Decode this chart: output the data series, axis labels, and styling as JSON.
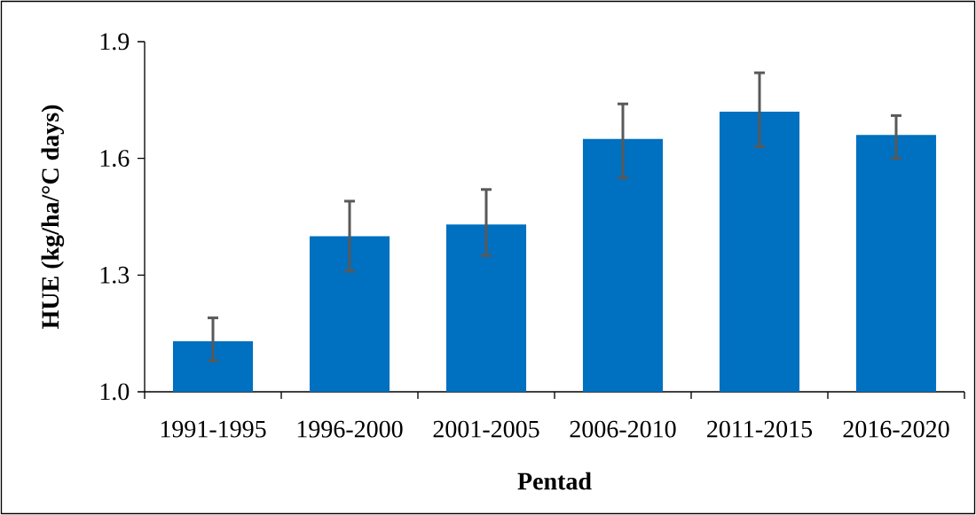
{
  "chart_data": {
    "type": "bar",
    "categories": [
      "1991-1995",
      "1996-2000",
      "2001-2005",
      "2006-2010",
      "2011-2015",
      "2016-2020"
    ],
    "values": [
      1.13,
      1.4,
      1.43,
      1.65,
      1.72,
      1.66
    ],
    "errors": [
      [
        1.08,
        1.19
      ],
      [
        1.31,
        1.49
      ],
      [
        1.35,
        1.52
      ],
      [
        1.55,
        1.74
      ],
      [
        1.63,
        1.82
      ],
      [
        1.6,
        1.71
      ]
    ],
    "color": "#0070c0",
    "xlabel": "Pentad",
    "ylabel": "HUE (kg/ha/°C days)",
    "ylim": [
      1.0,
      1.9
    ],
    "yticks": [
      {
        "value": 1.0,
        "label": "1.0"
      },
      1.3,
      1.6,
      1.9
    ]
  }
}
